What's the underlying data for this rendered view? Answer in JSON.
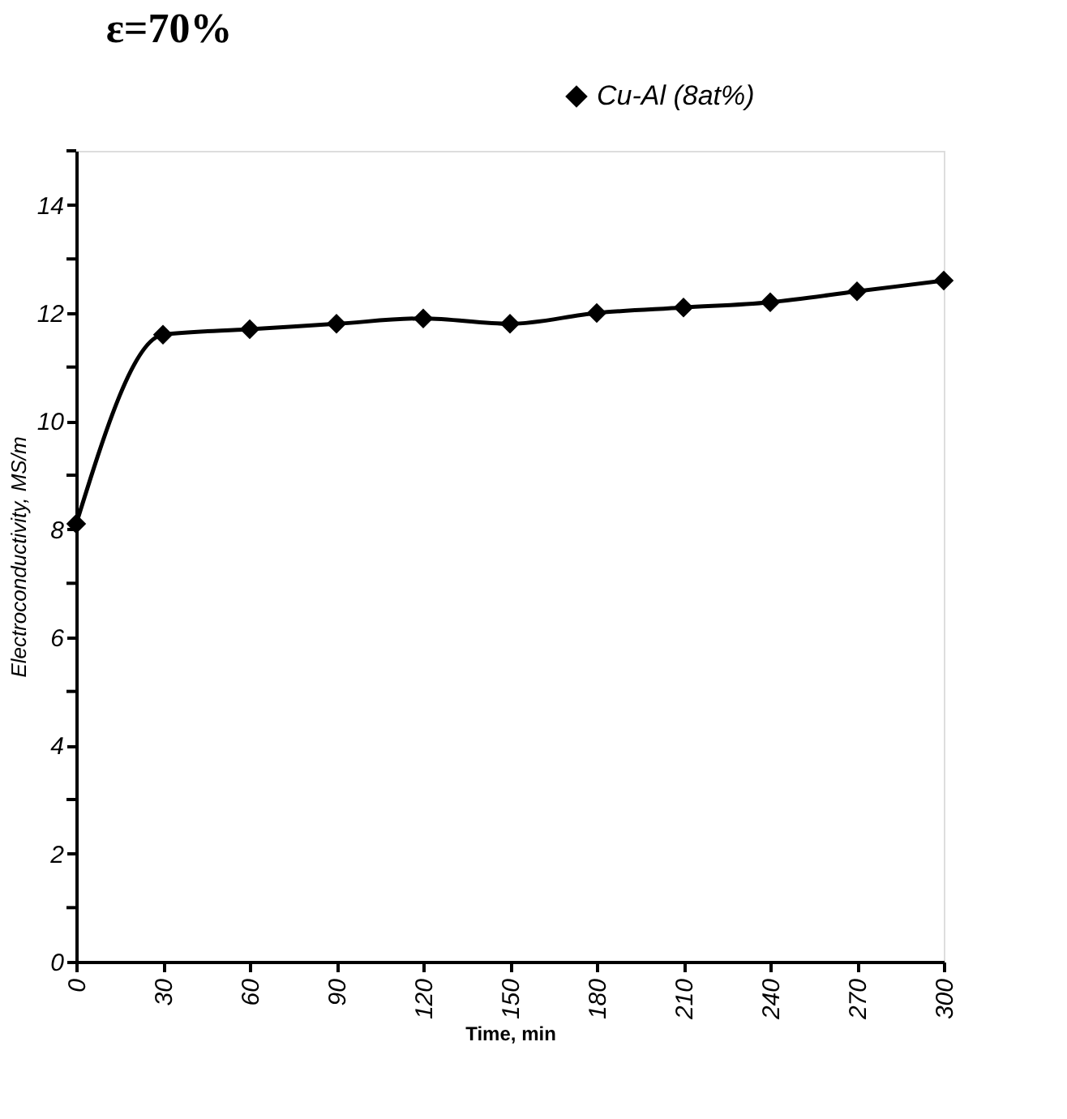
{
  "chart_data": {
    "type": "line",
    "title": "ε=70%",
    "xlabel": "Time,  min",
    "ylabel": "Electroconductivity, MS/m",
    "x": [
      0,
      30,
      60,
      90,
      120,
      150,
      180,
      210,
      240,
      270,
      300
    ],
    "series": [
      {
        "name": "Cu-Al (8at%)",
        "color": "#000000",
        "values": [
          8.1,
          11.6,
          11.7,
          11.8,
          11.9,
          11.8,
          12.0,
          12.1,
          12.2,
          12.4,
          12.6
        ]
      }
    ],
    "xlim": [
      0,
      300
    ],
    "xticks": [
      0,
      30,
      60,
      90,
      120,
      150,
      180,
      210,
      240,
      270,
      300
    ],
    "ylim": [
      0,
      15
    ],
    "yticks": [
      0,
      {
        "value": 1,
        "label": null
      },
      2,
      {
        "value": 3,
        "label": null
      },
      4,
      {
        "value": 5,
        "label": null
      },
      6,
      {
        "value": 7,
        "label": null
      },
      8,
      {
        "value": 9,
        "label": null
      },
      10,
      {
        "value": 11,
        "label": null
      },
      12,
      {
        "value": 13,
        "label": null
      },
      14,
      {
        "value": 15,
        "label": null
      }
    ],
    "grid": false,
    "legend": "top right",
    "marker": "diamond",
    "line_style": "solid"
  }
}
